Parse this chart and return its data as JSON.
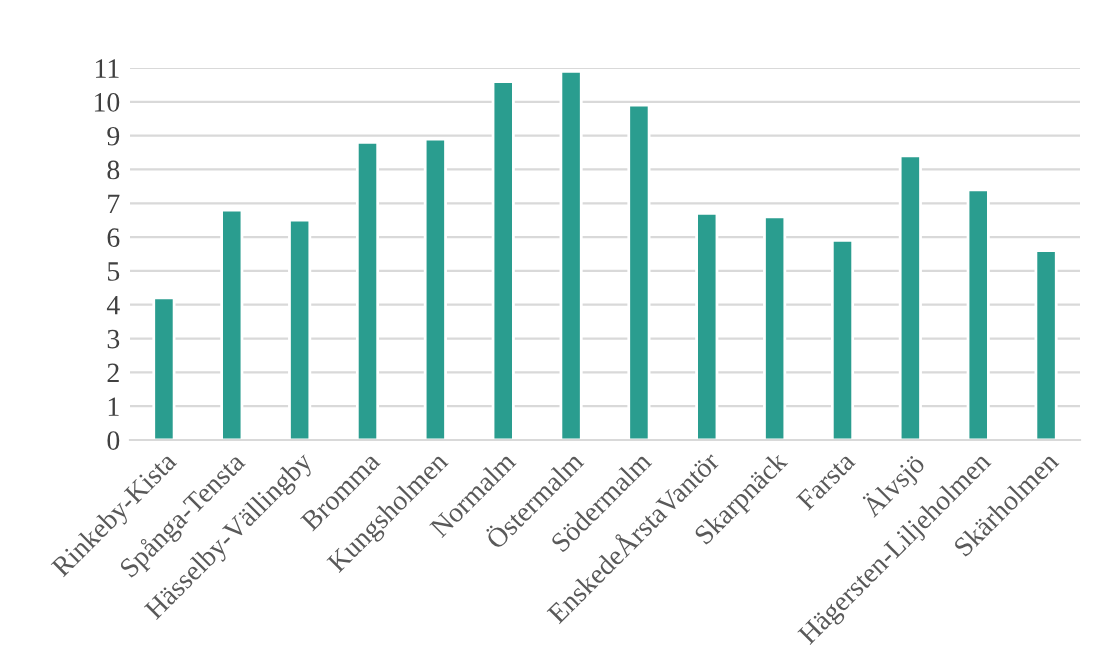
{
  "chart_data": {
    "type": "bar",
    "categories": [
      "Rinkeby-Kista",
      "Spånga-Tensta",
      "Hässelby-Vällingby",
      "Bromma",
      "Kungsholmen",
      "Normalm",
      "Östermalm",
      "Södermalm",
      "EnskedeÅrstaVantör",
      "Skarpnäck",
      "Farsta",
      "Älvsjö",
      "Hägersten-Liljeholmen",
      "Skärholmen"
    ],
    "values": [
      4.2,
      6.8,
      6.5,
      8.8,
      8.9,
      10.6,
      10.9,
      9.9,
      6.7,
      6.6,
      5.9,
      8.4,
      7.4,
      5.6
    ],
    "color": "#2a9d8f",
    "ylim": [
      0,
      11
    ],
    "yticks": [
      0,
      1,
      2,
      3,
      4,
      5,
      6,
      7,
      8,
      9,
      10,
      11
    ],
    "grid": "y"
  }
}
